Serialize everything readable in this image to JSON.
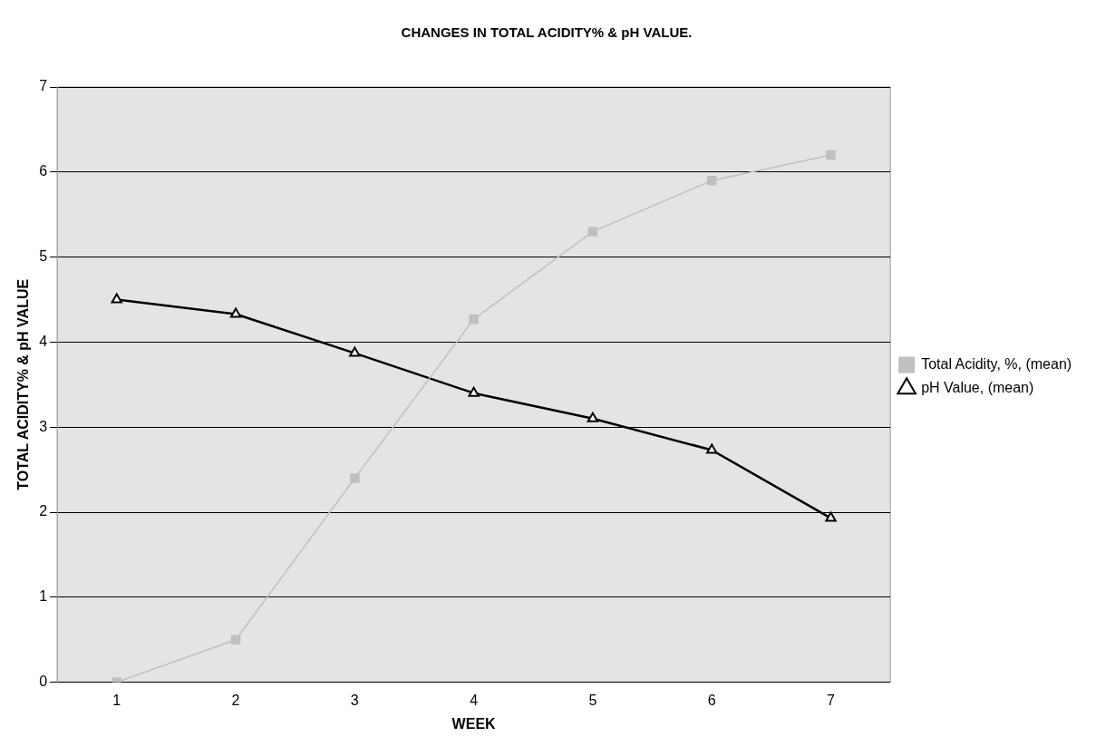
{
  "chart_data": {
    "type": "line",
    "title": "CHANGES IN TOTAL ACIDITY% & pH VALUE.",
    "xlabel": "WEEK",
    "ylabel": "TOTAL ACIDITY% & pH VALUE",
    "categories": [
      "1",
      "2",
      "3",
      "4",
      "5",
      "6",
      "7"
    ],
    "series": [
      {
        "name": "Total Acidity, %, (mean)",
        "color": "#c0c0c0",
        "marker": "square",
        "values": [
          0,
          0.5,
          2.4,
          4.27,
          5.3,
          5.9,
          6.2
        ]
      },
      {
        "name": "pH Value, (mean)",
        "color": "#000000",
        "marker": "triangle",
        "values": [
          4.5,
          4.33,
          3.87,
          3.4,
          3.1,
          2.73,
          1.93
        ]
      }
    ],
    "ylim": [
      0,
      7
    ],
    "yticks": [
      0,
      1,
      2,
      3,
      4,
      5,
      6,
      7
    ],
    "grid": "y",
    "legend": "right",
    "line_style": "solid"
  }
}
